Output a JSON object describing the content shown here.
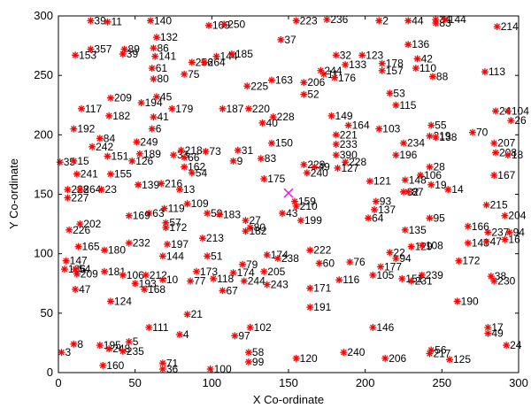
{
  "chart_data": {
    "type": "scatter",
    "xlabel": "X Co-ordinate",
    "ylabel": "Y Co-ordinate",
    "xlim": [
      0,
      300
    ],
    "ylim": [
      0,
      300
    ],
    "xticks": [
      0,
      50,
      100,
      150,
      200,
      250,
      300
    ],
    "yticks": [
      0,
      50,
      100,
      150,
      200,
      250,
      300
    ],
    "grid": false,
    "marker_color": "#ff0000",
    "special_marker_color": "#ff00ff",
    "special_point": {
      "x": 150,
      "y": 151
    },
    "points": [
      {
        "id": "39",
        "x": 21,
        "y": 296
      },
      {
        "id": "11",
        "x": 32,
        "y": 295
      },
      {
        "id": "140",
        "x": 60,
        "y": 296
      },
      {
        "id": "169",
        "x": 98,
        "y": 292
      },
      {
        "id": "250",
        "x": 108,
        "y": 293
      },
      {
        "id": "223",
        "x": 155,
        "y": 296
      },
      {
        "id": "236",
        "x": 175,
        "y": 297
      },
      {
        "id": "2",
        "x": 209,
        "y": 296
      },
      {
        "id": "44",
        "x": 228,
        "y": 296
      },
      {
        "id": "34",
        "x": 246,
        "y": 297
      },
      {
        "id": "83",
        "x": 246,
        "y": 294
      },
      {
        "id": "144",
        "x": 252,
        "y": 297
      },
      {
        "id": "214",
        "x": 286,
        "y": 291
      },
      {
        "id": "132",
        "x": 64,
        "y": 282
      },
      {
        "id": "37",
        "x": 145,
        "y": 280
      },
      {
        "id": "136",
        "x": 228,
        "y": 276
      },
      {
        "id": "357",
        "x": 21,
        "y": 272
      },
      {
        "id": "89",
        "x": 43,
        "y": 272
      },
      {
        "id": "86",
        "x": 62,
        "y": 273
      },
      {
        "id": "39",
        "x": 42,
        "y": 268
      },
      {
        "id": "153",
        "x": 11,
        "y": 267
      },
      {
        "id": "141",
        "x": 63,
        "y": 266
      },
      {
        "id": "144",
        "x": 103,
        "y": 266
      },
      {
        "id": "185",
        "x": 113,
        "y": 268
      },
      {
        "id": "32",
        "x": 181,
        "y": 267
      },
      {
        "id": "123",
        "x": 198,
        "y": 267
      },
      {
        "id": "42",
        "x": 234,
        "y": 264
      },
      {
        "id": "256",
        "x": 87,
        "y": 261
      },
      {
        "id": "264",
        "x": 95,
        "y": 261
      },
      {
        "id": "133",
        "x": 187,
        "y": 259
      },
      {
        "id": "178",
        "x": 211,
        "y": 260
      },
      {
        "id": "61",
        "x": 61,
        "y": 256
      },
      {
        "id": "110",
        "x": 233,
        "y": 256
      },
      {
        "id": "157",
        "x": 211,
        "y": 254
      },
      {
        "id": "113",
        "x": 278,
        "y": 253
      },
      {
        "id": "75",
        "x": 82,
        "y": 251
      },
      {
        "id": "244",
        "x": 171,
        "y": 254
      },
      {
        "id": "11",
        "x": 173,
        "y": 251
      },
      {
        "id": "176",
        "x": 180,
        "y": 248
      },
      {
        "id": "88",
        "x": 244,
        "y": 249
      },
      {
        "id": "80",
        "x": 62,
        "y": 247
      },
      {
        "id": "163",
        "x": 139,
        "y": 246
      },
      {
        "id": "225",
        "x": 123,
        "y": 241
      },
      {
        "id": "206",
        "x": 160,
        "y": 244
      },
      {
        "id": "53",
        "x": 216,
        "y": 235
      },
      {
        "id": "52",
        "x": 160,
        "y": 234
      },
      {
        "id": "209",
        "x": 34,
        "y": 231
      },
      {
        "id": "45",
        "x": 64,
        "y": 232
      },
      {
        "id": "194",
        "x": 54,
        "y": 227
      },
      {
        "id": "115",
        "x": 220,
        "y": 225
      },
      {
        "id": "117",
        "x": 15,
        "y": 222
      },
      {
        "id": "179",
        "x": 74,
        "y": 222
      },
      {
        "id": "187",
        "x": 107,
        "y": 222
      },
      {
        "id": "220",
        "x": 124,
        "y": 222
      },
      {
        "id": "24",
        "x": 285,
        "y": 220
      },
      {
        "id": "104",
        "x": 293,
        "y": 220
      },
      {
        "id": "182",
        "x": 33,
        "y": 216
      },
      {
        "id": "41",
        "x": 62,
        "y": 215
      },
      {
        "id": "228",
        "x": 140,
        "y": 215
      },
      {
        "id": "149",
        "x": 178,
        "y": 216
      },
      {
        "id": "26",
        "x": 295,
        "y": 212
      },
      {
        "id": "40",
        "x": 133,
        "y": 210
      },
      {
        "id": "164",
        "x": 189,
        "y": 208
      },
      {
        "id": "103",
        "x": 209,
        "y": 205
      },
      {
        "id": "55",
        "x": 243,
        "y": 208
      },
      {
        "id": "192",
        "x": 10,
        "y": 205
      },
      {
        "id": "6",
        "x": 61,
        "y": 205
      },
      {
        "id": "221",
        "x": 181,
        "y": 200
      },
      {
        "id": "70",
        "x": 270,
        "y": 202
      },
      {
        "id": "219",
        "x": 242,
        "y": 199
      },
      {
        "id": "138",
        "x": 246,
        "y": 198
      },
      {
        "id": "84",
        "x": 27,
        "y": 197
      },
      {
        "id": "249",
        "x": 51,
        "y": 194
      },
      {
        "id": "242",
        "x": 22,
        "y": 190
      },
      {
        "id": "150",
        "x": 139,
        "y": 193
      },
      {
        "id": "233",
        "x": 181,
        "y": 192
      },
      {
        "id": "234",
        "x": 225,
        "y": 193
      },
      {
        "id": "207",
        "x": 284,
        "y": 193
      },
      {
        "id": "31",
        "x": 117,
        "y": 187
      },
      {
        "id": "33",
        "x": 75,
        "y": 183
      },
      {
        "id": "218",
        "x": 80,
        "y": 187
      },
      {
        "id": "73",
        "x": 96,
        "y": 186
      },
      {
        "id": "189",
        "x": 53,
        "y": 184
      },
      {
        "id": "151",
        "x": 32,
        "y": 182
      },
      {
        "id": "66",
        "x": 82,
        "y": 181
      },
      {
        "id": "390",
        "x": 181,
        "y": 183
      },
      {
        "id": "196",
        "x": 220,
        "y": 183
      },
      {
        "id": "208",
        "x": 285,
        "y": 185
      },
      {
        "id": "18",
        "x": 293,
        "y": 183
      },
      {
        "id": "35",
        "x": 1,
        "y": 177
      },
      {
        "id": "15",
        "x": 10,
        "y": 178
      },
      {
        "id": "126",
        "x": 48,
        "y": 178
      },
      {
        "id": "9",
        "x": 114,
        "y": 178
      },
      {
        "id": "83",
        "x": 132,
        "y": 180
      },
      {
        "id": "228",
        "x": 187,
        "y": 177
      },
      {
        "id": "162",
        "x": 82,
        "y": 173
      },
      {
        "id": "28",
        "x": 242,
        "y": 173
      },
      {
        "id": "127",
        "x": 182,
        "y": 172
      },
      {
        "id": "229",
        "x": 160,
        "y": 175
      },
      {
        "id": "49",
        "x": 167,
        "y": 173
      },
      {
        "id": "54",
        "x": 87,
        "y": 168
      },
      {
        "id": "241",
        "x": 12,
        "y": 167
      },
      {
        "id": "155",
        "x": 34,
        "y": 167
      },
      {
        "id": "106",
        "x": 236,
        "y": 166
      },
      {
        "id": "167",
        "x": 284,
        "y": 166
      },
      {
        "id": "240",
        "x": 162,
        "y": 168
      },
      {
        "id": "175",
        "x": 134,
        "y": 163
      },
      {
        "id": "139",
        "x": 52,
        "y": 158
      },
      {
        "id": "216",
        "x": 67,
        "y": 159
      },
      {
        "id": "121",
        "x": 203,
        "y": 161
      },
      {
        "id": "148",
        "x": 226,
        "y": 162
      },
      {
        "id": "19",
        "x": 243,
        "y": 158
      },
      {
        "id": "13",
        "x": 79,
        "y": 154
      },
      {
        "id": "228",
        "x": 6,
        "y": 154
      },
      {
        "id": "264",
        "x": 14,
        "y": 154
      },
      {
        "id": "23",
        "x": 28,
        "y": 154
      },
      {
        "id": "82",
        "x": 225,
        "y": 152
      },
      {
        "id": "87",
        "x": 228,
        "y": 152
      },
      {
        "id": "14",
        "x": 254,
        "y": 154
      },
      {
        "id": "227",
        "x": 6,
        "y": 147
      },
      {
        "id": "159",
        "x": 154,
        "y": 144
      },
      {
        "id": "93",
        "x": 207,
        "y": 144
      },
      {
        "id": "210",
        "x": 155,
        "y": 140
      },
      {
        "id": "109",
        "x": 84,
        "y": 142
      },
      {
        "id": "215",
        "x": 279,
        "y": 141
      },
      {
        "id": "119",
        "x": 69,
        "y": 138
      },
      {
        "id": "137",
        "x": 206,
        "y": 137
      },
      {
        "id": "63",
        "x": 59,
        "y": 134
      },
      {
        "id": "59",
        "x": 97,
        "y": 134
      },
      {
        "id": "183",
        "x": 105,
        "y": 133
      },
      {
        "id": "43",
        "x": 146,
        "y": 134
      },
      {
        "id": "169",
        "x": 46,
        "y": 132
      },
      {
        "id": "204",
        "x": 291,
        "y": 132
      },
      {
        "id": "27",
        "x": 122,
        "y": 128
      },
      {
        "id": "57",
        "x": 70,
        "y": 126
      },
      {
        "id": "199",
        "x": 158,
        "y": 128
      },
      {
        "id": "64",
        "x": 202,
        "y": 130
      },
      {
        "id": "95",
        "x": 242,
        "y": 130
      },
      {
        "id": "202",
        "x": 14,
        "y": 125
      },
      {
        "id": "172",
        "x": 70,
        "y": 122
      },
      {
        "id": "80",
        "x": 125,
        "y": 122
      },
      {
        "id": "182",
        "x": 122,
        "y": 119
      },
      {
        "id": "166",
        "x": 267,
        "y": 123
      },
      {
        "id": "226",
        "x": 7,
        "y": 120
      },
      {
        "id": "135",
        "x": 226,
        "y": 120
      },
      {
        "id": "237",
        "x": 280,
        "y": 118
      },
      {
        "id": "94",
        "x": 294,
        "y": 118
      },
      {
        "id": "213",
        "x": 94,
        "y": 113
      },
      {
        "id": "232",
        "x": 46,
        "y": 109
      },
      {
        "id": "197",
        "x": 71,
        "y": 108
      },
      {
        "id": "143",
        "x": 267,
        "y": 109
      },
      {
        "id": "47",
        "x": 279,
        "y": 110
      },
      {
        "id": "16",
        "x": 291,
        "y": 112
      },
      {
        "id": "165",
        "x": 13,
        "y": 106
      },
      {
        "id": "129",
        "x": 230,
        "y": 106
      },
      {
        "id": "108",
        "x": 237,
        "y": 107
      },
      {
        "id": "180",
        "x": 30,
        "y": 103
      },
      {
        "id": "222",
        "x": 164,
        "y": 103
      },
      {
        "id": "22",
        "x": 216,
        "y": 101
      },
      {
        "id": "144",
        "x": 68,
        "y": 98
      },
      {
        "id": "51",
        "x": 97,
        "y": 98
      },
      {
        "id": "174",
        "x": 136,
        "y": 99
      },
      {
        "id": "238",
        "x": 143,
        "y": 96
      },
      {
        "id": "94",
        "x": 220,
        "y": 96
      },
      {
        "id": "147",
        "x": 5,
        "y": 94
      },
      {
        "id": "172",
        "x": 261,
        "y": 94
      },
      {
        "id": "60",
        "x": 170,
        "y": 92
      },
      {
        "id": "76",
        "x": 190,
        "y": 93
      },
      {
        "id": "79",
        "x": 120,
        "y": 91
      },
      {
        "id": "177",
        "x": 210,
        "y": 89
      },
      {
        "id": "186",
        "x": 4,
        "y": 87
      },
      {
        "id": "54",
        "x": 11,
        "y": 87
      },
      {
        "id": "209",
        "x": 12,
        "y": 83
      },
      {
        "id": "181",
        "x": 30,
        "y": 85
      },
      {
        "id": "106",
        "x": 42,
        "y": 82
      },
      {
        "id": "173",
        "x": 90,
        "y": 85
      },
      {
        "id": "174",
        "x": 114,
        "y": 84
      },
      {
        "id": "205",
        "x": 134,
        "y": 85
      },
      {
        "id": "105",
        "x": 205,
        "y": 82
      },
      {
        "id": "239",
        "x": 237,
        "y": 82
      },
      {
        "id": "212",
        "x": 57,
        "y": 82
      },
      {
        "id": "10",
        "x": 68,
        "y": 78
      },
      {
        "id": "77",
        "x": 86,
        "y": 77
      },
      {
        "id": "118",
        "x": 101,
        "y": 79
      },
      {
        "id": "244",
        "x": 121,
        "y": 77
      },
      {
        "id": "243",
        "x": 136,
        "y": 74
      },
      {
        "id": "116",
        "x": 183,
        "y": 78
      },
      {
        "id": "151",
        "x": 224,
        "y": 79
      },
      {
        "id": "231",
        "x": 230,
        "y": 77
      },
      {
        "id": "38",
        "x": 282,
        "y": 81
      },
      {
        "id": "230",
        "x": 284,
        "y": 77
      },
      {
        "id": "193",
        "x": 50,
        "y": 75
      },
      {
        "id": "168",
        "x": 56,
        "y": 70
      },
      {
        "id": "67",
        "x": 107,
        "y": 69
      },
      {
        "id": "171",
        "x": 164,
        "y": 71
      },
      {
        "id": "47",
        "x": 11,
        "y": 70
      },
      {
        "id": "124",
        "x": 34,
        "y": 60
      },
      {
        "id": "190",
        "x": 260,
        "y": 60
      },
      {
        "id": "191",
        "x": 164,
        "y": 55
      },
      {
        "id": "21",
        "x": 84,
        "y": 49
      },
      {
        "id": "102",
        "x": 125,
        "y": 38
      },
      {
        "id": "111",
        "x": 59,
        "y": 38
      },
      {
        "id": "146",
        "x": 205,
        "y": 38
      },
      {
        "id": "17",
        "x": 280,
        "y": 38
      },
      {
        "id": "4",
        "x": 79,
        "y": 32
      },
      {
        "id": "97",
        "x": 115,
        "y": 31
      },
      {
        "id": "49",
        "x": 280,
        "y": 33
      },
      {
        "id": "5",
        "x": 46,
        "y": 26
      },
      {
        "id": "8",
        "x": 10,
        "y": 24
      },
      {
        "id": "195",
        "x": 27,
        "y": 23
      },
      {
        "id": "248",
        "x": 33,
        "y": 20
      },
      {
        "id": "235",
        "x": 42,
        "y": 18
      },
      {
        "id": "24",
        "x": 292,
        "y": 23
      },
      {
        "id": "3",
        "x": 2,
        "y": 17
      },
      {
        "id": "58",
        "x": 124,
        "y": 17
      },
      {
        "id": "240",
        "x": 186,
        "y": 17
      },
      {
        "id": "56",
        "x": 243,
        "y": 19
      },
      {
        "id": "217",
        "x": 242,
        "y": 16
      },
      {
        "id": "120",
        "x": 155,
        "y": 12
      },
      {
        "id": "206",
        "x": 213,
        "y": 12
      },
      {
        "id": "125",
        "x": 255,
        "y": 11
      },
      {
        "id": "99",
        "x": 124,
        "y": 9
      },
      {
        "id": "160",
        "x": 29,
        "y": 6
      },
      {
        "id": "71",
        "x": 68,
        "y": 8
      },
      {
        "id": "36",
        "x": 68,
        "y": 3
      },
      {
        "id": "100",
        "x": 99,
        "y": 3
      }
    ]
  }
}
